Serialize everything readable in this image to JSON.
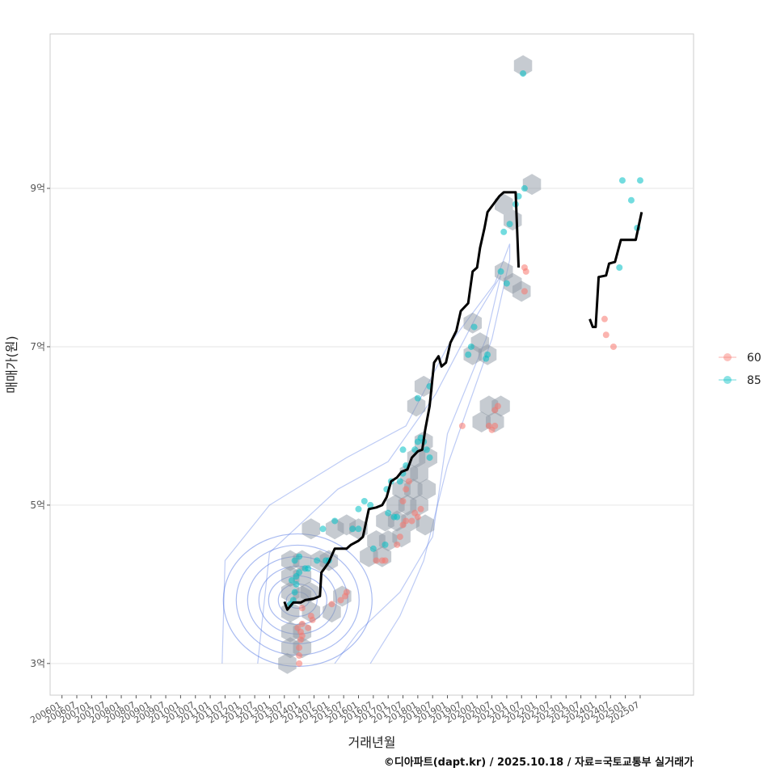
{
  "chart_data": {
    "type": "scatter",
    "title": "",
    "xlabel": "거래년월",
    "ylabel": "매매가(원)",
    "credit": "©디아파트(dapt.kr) / 2025.10.18 / 자료=국토교통부 실거래가",
    "x_ticks": [
      "200601",
      "200607",
      "200701",
      "200707",
      "200801",
      "200807",
      "200901",
      "200907",
      "201001",
      "201007",
      "201101",
      "201107",
      "201201",
      "201207",
      "201301",
      "201307",
      "201401",
      "201407",
      "201501",
      "201507",
      "201601",
      "201607",
      "201701",
      "201707",
      "201801",
      "201807",
      "201901",
      "201907",
      "202001",
      "202007",
      "202101",
      "202107",
      "202201",
      "202207",
      "202301",
      "202307",
      "202401",
      "202407",
      "202501",
      "202507"
    ],
    "x_range": [
      2005.6,
      2027.3
    ],
    "y_range": [
      2.6,
      10.95
    ],
    "y_ticks": [
      {
        "value": 3,
        "label": "3억"
      },
      {
        "value": 5,
        "label": "5억"
      },
      {
        "value": 7,
        "label": "7억"
      },
      {
        "value": 9,
        "label": "9억"
      }
    ],
    "legend": {
      "position": "right",
      "entries": [
        {
          "label": "60",
          "color": "#F8766D"
        },
        {
          "label": "85",
          "color": "#00BFC4"
        }
      ]
    },
    "series": [
      {
        "name": "60",
        "color": "#F8766D",
        "points": [
          [
            2014.0,
            3.0
          ],
          [
            2014.0,
            3.1
          ],
          [
            2014.0,
            3.2
          ],
          [
            2014.05,
            3.3
          ],
          [
            2014.1,
            3.35
          ],
          [
            2014.05,
            3.4
          ],
          [
            2013.95,
            3.45
          ],
          [
            2014.1,
            3.5
          ],
          [
            2014.3,
            3.45
          ],
          [
            2014.45,
            3.55
          ],
          [
            2014.4,
            3.6
          ],
          [
            2014.1,
            3.7
          ],
          [
            2015.1,
            3.75
          ],
          [
            2015.4,
            3.8
          ],
          [
            2015.55,
            3.85
          ],
          [
            2015.6,
            3.9
          ],
          [
            2016.6,
            4.3
          ],
          [
            2016.8,
            4.3
          ],
          [
            2016.9,
            4.3
          ],
          [
            2017.3,
            4.5
          ],
          [
            2017.4,
            4.6
          ],
          [
            2017.5,
            4.75
          ],
          [
            2017.6,
            4.8
          ],
          [
            2017.8,
            4.8
          ],
          [
            2017.9,
            4.9
          ],
          [
            2018.0,
            4.85
          ],
          [
            2018.1,
            4.95
          ],
          [
            2017.5,
            5.05
          ],
          [
            2017.6,
            5.2
          ],
          [
            2017.7,
            5.3
          ],
          [
            2019.5,
            6.0
          ],
          [
            2020.4,
            6.0
          ],
          [
            2020.6,
            6.0
          ],
          [
            2020.5,
            5.95
          ],
          [
            2020.6,
            6.2
          ],
          [
            2020.7,
            6.25
          ],
          [
            2021.6,
            7.7
          ],
          [
            2021.6,
            8.0
          ],
          [
            2021.65,
            7.95
          ],
          [
            2024.3,
            7.35
          ],
          [
            2024.35,
            7.15
          ],
          [
            2024.6,
            7.0
          ]
        ]
      },
      {
        "name": "85",
        "color": "#00BFC4",
        "points": [
          [
            2013.7,
            3.75
          ],
          [
            2013.8,
            3.8
          ],
          [
            2013.85,
            3.9
          ],
          [
            2013.9,
            4.0
          ],
          [
            2013.75,
            4.05
          ],
          [
            2013.9,
            4.1
          ],
          [
            2014.0,
            4.15
          ],
          [
            2014.2,
            4.2
          ],
          [
            2014.3,
            4.2
          ],
          [
            2013.85,
            4.3
          ],
          [
            2014.0,
            4.35
          ],
          [
            2014.6,
            4.3
          ],
          [
            2014.9,
            4.3
          ],
          [
            2015.0,
            4.3
          ],
          [
            2014.8,
            4.7
          ],
          [
            2015.2,
            4.8
          ],
          [
            2015.8,
            4.7
          ],
          [
            2016.0,
            4.7
          ],
          [
            2016.0,
            4.95
          ],
          [
            2016.2,
            5.05
          ],
          [
            2016.4,
            5.0
          ],
          [
            2016.5,
            4.45
          ],
          [
            2016.9,
            4.5
          ],
          [
            2017.0,
            4.9
          ],
          [
            2017.2,
            4.85
          ],
          [
            2017.3,
            4.85
          ],
          [
            2016.95,
            5.2
          ],
          [
            2017.1,
            5.3
          ],
          [
            2017.4,
            5.3
          ],
          [
            2017.5,
            5.4
          ],
          [
            2017.6,
            5.5
          ],
          [
            2017.5,
            5.7
          ],
          [
            2017.9,
            5.7
          ],
          [
            2018.0,
            5.8
          ],
          [
            2018.1,
            5.85
          ],
          [
            2018.2,
            5.8
          ],
          [
            2018.3,
            5.7
          ],
          [
            2018.4,
            5.6
          ],
          [
            2018.0,
            6.35
          ],
          [
            2018.4,
            6.5
          ],
          [
            2019.7,
            6.9
          ],
          [
            2019.8,
            7.0
          ],
          [
            2019.9,
            7.25
          ],
          [
            2020.3,
            6.85
          ],
          [
            2020.35,
            6.9
          ],
          [
            2020.8,
            7.95
          ],
          [
            2021.0,
            7.8
          ],
          [
            2020.9,
            8.45
          ],
          [
            2021.1,
            8.55
          ],
          [
            2021.3,
            8.8
          ],
          [
            2021.4,
            8.9
          ],
          [
            2021.6,
            9.0
          ],
          [
            2021.55,
            10.45
          ],
          [
            2024.9,
            9.1
          ],
          [
            2025.2,
            8.85
          ],
          [
            2025.5,
            9.1
          ],
          [
            2025.4,
            8.5
          ],
          [
            2024.8,
            8.0
          ]
        ]
      }
    ],
    "hexbins": [
      [
        2021.55,
        10.55
      ],
      [
        2021.85,
        9.05
      ],
      [
        2020.9,
        8.8
      ],
      [
        2021.2,
        8.6
      ],
      [
        2020.9,
        7.95
      ],
      [
        2021.2,
        7.8
      ],
      [
        2021.5,
        7.7
      ],
      [
        2019.85,
        7.3
      ],
      [
        2020.1,
        7.05
      ],
      [
        2019.85,
        6.9
      ],
      [
        2020.35,
        6.9
      ],
      [
        2020.4,
        6.25
      ],
      [
        2020.8,
        6.25
      ],
      [
        2020.15,
        6.05
      ],
      [
        2020.6,
        6.05
      ],
      [
        2018.2,
        6.5
      ],
      [
        2017.95,
        6.25
      ],
      [
        2018.2,
        5.8
      ],
      [
        2017.95,
        5.6
      ],
      [
        2018.35,
        5.6
      ],
      [
        2017.7,
        5.4
      ],
      [
        2018.05,
        5.4
      ],
      [
        2017.45,
        5.2
      ],
      [
        2017.85,
        5.2
      ],
      [
        2018.3,
        5.2
      ],
      [
        2017.25,
        5.0
      ],
      [
        2017.65,
        5.0
      ],
      [
        2018.05,
        5.0
      ],
      [
        2016.9,
        4.8
      ],
      [
        2017.3,
        4.8
      ],
      [
        2017.75,
        4.8
      ],
      [
        2018.25,
        4.75
      ],
      [
        2016.6,
        4.55
      ],
      [
        2017.0,
        4.55
      ],
      [
        2017.45,
        4.6
      ],
      [
        2016.35,
        4.35
      ],
      [
        2016.8,
        4.35
      ],
      [
        2015.2,
        4.7
      ],
      [
        2015.6,
        4.75
      ],
      [
        2016.0,
        4.7
      ],
      [
        2014.4,
        4.7
      ],
      [
        2013.7,
        4.3
      ],
      [
        2014.1,
        4.3
      ],
      [
        2014.7,
        4.3
      ],
      [
        2015.0,
        4.3
      ],
      [
        2013.7,
        4.1
      ],
      [
        2014.1,
        4.1
      ],
      [
        2013.7,
        3.9
      ],
      [
        2014.1,
        3.85
      ],
      [
        2014.35,
        3.9
      ],
      [
        2013.7,
        3.65
      ],
      [
        2014.4,
        3.65
      ],
      [
        2013.7,
        3.4
      ],
      [
        2014.1,
        3.4
      ],
      [
        2013.7,
        3.2
      ],
      [
        2014.1,
        3.2
      ],
      [
        2013.6,
        3.0
      ],
      [
        2015.1,
        3.65
      ],
      [
        2015.45,
        3.85
      ]
    ],
    "trend_segments": [
      [
        [
          2013.5,
          3.78
        ],
        [
          2013.6,
          3.68
        ],
        [
          2013.8,
          3.77
        ],
        [
          2014.05,
          3.77
        ],
        [
          2014.2,
          3.8
        ],
        [
          2014.5,
          3.82
        ],
        [
          2014.7,
          3.85
        ],
        [
          2014.75,
          4.15
        ],
        [
          2014.85,
          4.2
        ],
        [
          2015.0,
          4.28
        ],
        [
          2015.2,
          4.45
        ],
        [
          2015.6,
          4.45
        ],
        [
          2015.75,
          4.5
        ],
        [
          2016.0,
          4.55
        ],
        [
          2016.15,
          4.6
        ],
        [
          2016.35,
          4.95
        ],
        [
          2016.6,
          4.97
        ],
        [
          2016.8,
          5.0
        ],
        [
          2016.95,
          5.1
        ],
        [
          2017.1,
          5.3
        ],
        [
          2017.3,
          5.35
        ],
        [
          2017.45,
          5.42
        ],
        [
          2017.65,
          5.45
        ],
        [
          2017.8,
          5.6
        ],
        [
          2018.0,
          5.68
        ],
        [
          2018.15,
          5.7
        ],
        [
          2018.25,
          5.95
        ],
        [
          2018.4,
          6.25
        ],
        [
          2018.55,
          6.8
        ],
        [
          2018.7,
          6.88
        ],
        [
          2018.8,
          6.75
        ],
        [
          2018.95,
          6.8
        ],
        [
          2019.1,
          7.05
        ],
        [
          2019.3,
          7.2
        ],
        [
          2019.45,
          7.45
        ],
        [
          2019.7,
          7.55
        ],
        [
          2019.85,
          7.95
        ],
        [
          2020.0,
          8.0
        ],
        [
          2020.1,
          8.25
        ],
        [
          2020.25,
          8.5
        ],
        [
          2020.35,
          8.7
        ],
        [
          2020.55,
          8.8
        ],
        [
          2020.75,
          8.9
        ],
        [
          2020.9,
          8.95
        ],
        [
          2021.3,
          8.95
        ],
        [
          2021.4,
          8.0
        ]
      ],
      [
        [
          2023.8,
          7.35
        ],
        [
          2023.9,
          7.25
        ],
        [
          2024.0,
          7.25
        ],
        [
          2024.1,
          7.88
        ],
        [
          2024.35,
          7.9
        ],
        [
          2024.45,
          8.05
        ],
        [
          2024.65,
          8.07
        ],
        [
          2024.85,
          8.35
        ],
        [
          2025.1,
          8.35
        ],
        [
          2025.35,
          8.35
        ],
        [
          2025.55,
          8.7
        ]
      ]
    ],
    "density_center": [
      2013.95,
      3.8
    ]
  }
}
